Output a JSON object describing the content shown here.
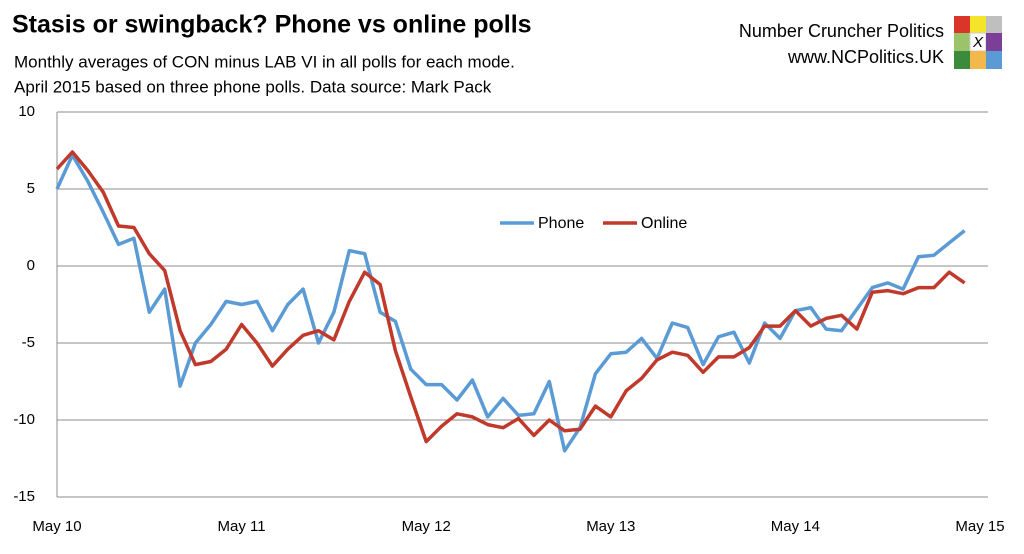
{
  "chart_data": {
    "type": "line",
    "title": "Stasis or swingback? Phone vs online polls",
    "subtitle": [
      "Monthly averages of CON minus LAB VI in all polls for each mode.",
      "April 2015 based on three phone polls. Data source: Mark Pack"
    ],
    "branding": {
      "name": "Number Cruncher Politics",
      "url": "www.NCPolitics.UK",
      "logo_text": "X"
    },
    "categories": [
      "May 10",
      null,
      null,
      null,
      null,
      null,
      null,
      null,
      null,
      null,
      null,
      null,
      "May 11",
      null,
      null,
      null,
      null,
      null,
      null,
      null,
      null,
      null,
      null,
      null,
      "May 12",
      null,
      null,
      null,
      null,
      null,
      null,
      null,
      null,
      null,
      null,
      null,
      "May 13",
      null,
      null,
      null,
      null,
      null,
      null,
      null,
      null,
      null,
      null,
      null,
      "May 14",
      null,
      null,
      null,
      null,
      null,
      null,
      null,
      null,
      null,
      null,
      null,
      "May 15"
    ],
    "series": [
      {
        "name": "Phone",
        "color": "#5b9bd5",
        "values": [
          5.0,
          7.2,
          5.5,
          3.5,
          1.4,
          1.8,
          -3.0,
          -1.5,
          -7.8,
          -5.0,
          -3.8,
          -2.3,
          -2.5,
          -2.3,
          -4.2,
          -2.5,
          -1.5,
          -5.0,
          -3.0,
          1.0,
          0.8,
          -3.0,
          -3.6,
          -6.7,
          -7.7,
          -7.7,
          -8.7,
          -7.4,
          -9.8,
          -8.6,
          -9.7,
          -9.6,
          -7.5,
          -12.0,
          -10.5,
          -7.0,
          -5.7,
          -5.6,
          -4.7,
          -6.0,
          -3.7,
          -4.0,
          -6.4,
          -4.6,
          -4.3,
          -6.3,
          -3.7,
          -4.7,
          -2.9,
          -2.7,
          -4.1,
          -4.2,
          -2.8,
          -1.4,
          -1.1,
          -1.5,
          0.6,
          0.7,
          1.5,
          2.3,
          null
        ]
      },
      {
        "name": "Online",
        "color": "#c0392b",
        "values": [
          6.3,
          7.4,
          6.2,
          4.8,
          2.6,
          2.5,
          0.8,
          -0.3,
          -4.2,
          -6.4,
          -6.2,
          -5.4,
          -3.8,
          -5.0,
          -6.5,
          -5.4,
          -4.5,
          -4.2,
          -4.8,
          -2.3,
          -0.4,
          -1.2,
          -5.5,
          -8.5,
          -11.4,
          -10.4,
          -9.6,
          -9.8,
          -10.3,
          -10.5,
          -9.9,
          -11.0,
          -10.0,
          -10.7,
          -10.6,
          -9.1,
          -9.8,
          -8.1,
          -7.3,
          -6.1,
          -5.6,
          -5.8,
          -6.9,
          -5.9,
          -5.9,
          -5.3,
          -3.9,
          -3.9,
          -2.9,
          -3.9,
          -3.4,
          -3.2,
          -4.1,
          -1.7,
          -1.6,
          -1.8,
          -1.4,
          -1.4,
          -0.4,
          -1.1,
          null
        ]
      }
    ],
    "ylim": [
      -15,
      10
    ],
    "yticks": [
      -15,
      -10,
      -5,
      0,
      5,
      10
    ],
    "grid": true
  }
}
